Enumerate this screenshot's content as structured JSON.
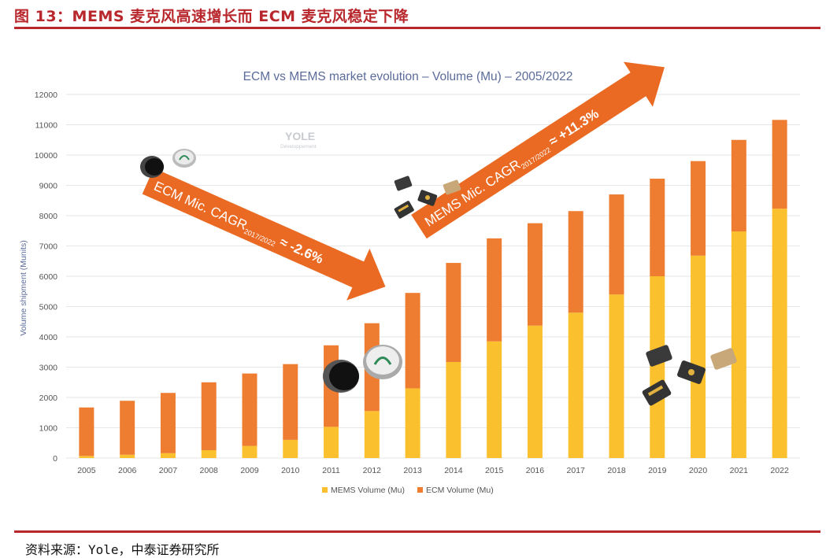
{
  "header": {
    "figure_title": "图 13：MEMS 麦克风高速增长而 ECM 麦克风稳定下降",
    "source": "资料来源：Yole，中泰证券研究所"
  },
  "watermark": {
    "text": "YOLE",
    "subtext": "Développement"
  },
  "annotations": {
    "ecm_arrow_label": "ECM Mic. CAGR",
    "ecm_arrow_sub": "2017/2022",
    "ecm_arrow_value": " ≈ -2.6%",
    "mems_arrow_label": "MEMS Mic. CAGR",
    "mems_arrow_sub": "2017/2022",
    "mems_arrow_value": " ≈ +11.3%"
  },
  "colors": {
    "mems": "#fbc02d",
    "ecm": "#ee7d31",
    "arrow": "#ea6a23",
    "header_red": "#b8272c",
    "title_blue": "#5b6b9a"
  },
  "chart_data": {
    "type": "bar",
    "stacked": true,
    "title": "ECM vs MEMS market evolution – Volume (Mu) – 2005/2022",
    "xlabel": "",
    "ylabel": "Volume shipment (Munits)",
    "ylim": [
      0,
      12000
    ],
    "yticks": [
      0,
      1000,
      2000,
      3000,
      4000,
      5000,
      6000,
      7000,
      8000,
      9000,
      10000,
      11000,
      12000
    ],
    "grid": true,
    "legend_position": "bottom",
    "categories": [
      "2005",
      "2006",
      "2007",
      "2008",
      "2009",
      "2010",
      "2011",
      "2012",
      "2013",
      "2014",
      "2015",
      "2016",
      "2017",
      "2018",
      "2019",
      "2020",
      "2021",
      "2022"
    ],
    "series": [
      {
        "name": "MEMS Volume (Mu)",
        "color": "#fbc02d",
        "values": [
          70,
          110,
          160,
          260,
          400,
          600,
          1030,
          1550,
          2300,
          3170,
          3850,
          4370,
          4800,
          5400,
          6000,
          6680,
          7480,
          8230
        ]
      },
      {
        "name": "ECM Volume (Mu)",
        "color": "#ee7d31",
        "values": [
          1600,
          1780,
          1990,
          2240,
          2390,
          2500,
          2690,
          2900,
          3150,
          3270,
          3400,
          3380,
          3350,
          3300,
          3220,
          3120,
          3020,
          2930
        ]
      }
    ]
  }
}
